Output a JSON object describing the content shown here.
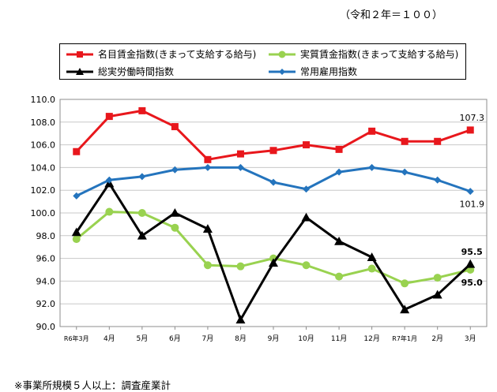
{
  "header": {
    "base_note": "（令和２年＝１００）"
  },
  "legend": {
    "items": [
      {
        "label": "名目賃金指数(きまって支給する給与)",
        "color": "#e8171c",
        "marker": "square"
      },
      {
        "label": "実質賃金指数(きまって支給する給与)",
        "color": "#99d250",
        "marker": "circle"
      },
      {
        "label": "総実労働時間指数",
        "color": "#000000",
        "marker": "triangle"
      },
      {
        "label": "常用雇用指数",
        "color": "#2474bd",
        "marker": "diamond"
      }
    ]
  },
  "footnote": "※事業所規模５人以上：調査産業計",
  "chart_data": {
    "type": "line",
    "categories": [
      "R6年3月",
      "4月",
      "5月",
      "6月",
      "7月",
      "8月",
      "9月",
      "10月",
      "11月",
      "12月",
      "R7年1月",
      "2月",
      "3月"
    ],
    "ylim": [
      90.0,
      110.0
    ],
    "yticks": [
      "90.0",
      "92.0",
      "94.0",
      "96.0",
      "98.0",
      "100.0",
      "102.0",
      "104.0",
      "106.0",
      "108.0",
      "110.0"
    ],
    "grid": true,
    "series": [
      {
        "name": "名目賃金指数(きまって支給する給与)",
        "color": "#e8171c",
        "marker": "square",
        "values": [
          105.4,
          108.5,
          109.0,
          107.6,
          104.7,
          105.2,
          105.5,
          106.0,
          105.6,
          107.2,
          106.3,
          106.3,
          107.3
        ]
      },
      {
        "name": "実質賃金指数(きまって支給する給与)",
        "color": "#99d250",
        "marker": "circle",
        "values": [
          97.7,
          100.1,
          100.0,
          98.7,
          95.4,
          95.3,
          96.0,
          95.4,
          94.4,
          95.1,
          93.8,
          94.3,
          95.0
        ]
      },
      {
        "name": "総実労働時間指数",
        "color": "#000000",
        "marker": "triangle",
        "values": [
          98.3,
          102.6,
          98.0,
          100.0,
          98.6,
          90.6,
          95.6,
          99.6,
          97.5,
          96.1,
          91.5,
          92.8,
          95.5
        ]
      },
      {
        "name": "常用雇用指数",
        "color": "#2474bd",
        "marker": "diamond",
        "values": [
          101.5,
          102.9,
          103.2,
          103.8,
          104.0,
          104.0,
          102.7,
          102.1,
          103.6,
          104.0,
          103.6,
          102.9,
          101.9
        ]
      }
    ],
    "annotations": [
      {
        "text": "107.3",
        "series": 0,
        "index": 12,
        "pos": "above"
      },
      {
        "text": "101.9",
        "series": 3,
        "index": 12,
        "pos": "below"
      },
      {
        "text": "95.5",
        "series": 2,
        "index": 12,
        "pos": "above"
      },
      {
        "text": "95.0",
        "series": 1,
        "index": 12,
        "pos": "below"
      }
    ]
  }
}
